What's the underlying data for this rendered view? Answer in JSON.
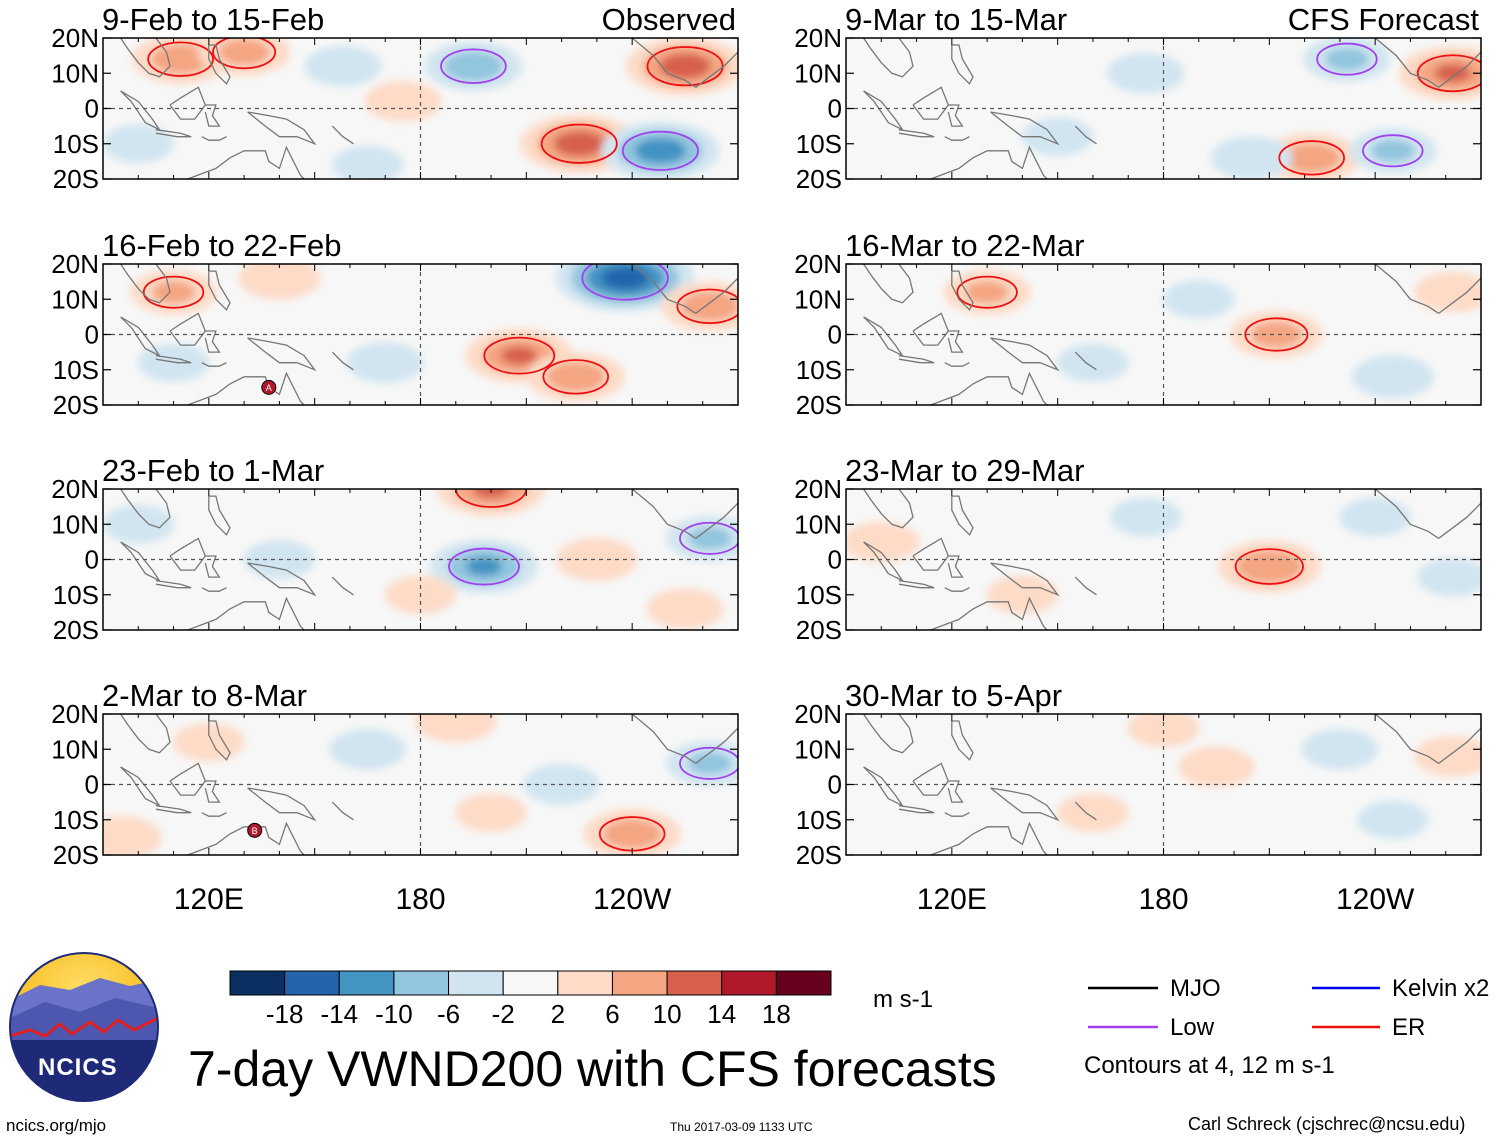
{
  "title": "7-day VWND200 with CFS forecasts",
  "footer": {
    "url": "ncics.org/mjo",
    "timestamp": "Thu 2017-03-09 1133 UTC",
    "author": "Carl Schreck (cjschrec@ncsu.edu)"
  },
  "logo": {
    "text": "NCICS"
  },
  "colorbar": {
    "units": "m s-1",
    "ticks": [
      "-18",
      "-14",
      "-10",
      "-6",
      "-2",
      "2",
      "6",
      "10",
      "14",
      "18"
    ],
    "colors": [
      "#0a3061",
      "#2265ad",
      "#4393c3",
      "#92c5de",
      "#d1e5f0",
      "#f7f7f7",
      "#fddbc7",
      "#f4a582",
      "#d6604d",
      "#b2182b",
      "#67001f"
    ]
  },
  "legend": {
    "items": [
      {
        "label": "MJO",
        "color": "#000000"
      },
      {
        "label": "Kelvin x2",
        "color": "#0000ee"
      },
      {
        "label": "Low",
        "color": "#a040ee"
      },
      {
        "label": "ER",
        "color": "#ee1111"
      }
    ],
    "note": "Contours at 4, 12 m s-1"
  },
  "chart_data": {
    "type": "heatmap",
    "variable": "VWND200",
    "xlabel": "",
    "ylabel": "",
    "x_ticks": [
      "120E",
      "180",
      "120W"
    ],
    "y_ticks": [
      "20N",
      "10N",
      "0",
      "10S",
      "20S"
    ],
    "xlim_degE": [
      90,
      270
    ],
    "ylim_deg": [
      -20,
      20
    ],
    "columns": [
      {
        "heading": "Observed",
        "panels": [
          {
            "title": "9-Feb to 15-Feb",
            "markers": [],
            "features": [
              {
                "lon": 195,
                "lat": 12,
                "v": -8
              },
              {
                "lon": 255,
                "lat": 12,
                "v": 12
              },
              {
                "lon": 225,
                "lat": -10,
                "v": 12
              },
              {
                "lon": 248,
                "lat": -12,
                "v": -12
              },
              {
                "lon": 112,
                "lat": 14,
                "v": 8
              },
              {
                "lon": 130,
                "lat": 16,
                "v": 7
              },
              {
                "lon": 175,
                "lat": 2,
                "v": 4
              },
              {
                "lon": 158,
                "lat": 12,
                "v": -4
              },
              {
                "lon": 100,
                "lat": -10,
                "v": -3
              },
              {
                "lon": 165,
                "lat": -16,
                "v": -3
              }
            ]
          },
          {
            "title": "16-Feb to 22-Feb",
            "markers": [
              {
                "letter": "A",
                "lon": 137,
                "lat": -15
              }
            ],
            "features": [
              {
                "lon": 238,
                "lat": 16,
                "v": -16
              },
              {
                "lon": 208,
                "lat": -6,
                "v": 10
              },
              {
                "lon": 224,
                "lat": -12,
                "v": 8
              },
              {
                "lon": 262,
                "lat": 8,
                "v": 8
              },
              {
                "lon": 110,
                "lat": 12,
                "v": 6
              },
              {
                "lon": 140,
                "lat": 16,
                "v": 5
              },
              {
                "lon": 170,
                "lat": -8,
                "v": -4
              },
              {
                "lon": 110,
                "lat": -8,
                "v": -3
              }
            ]
          },
          {
            "title": "23-Feb to 1-Mar",
            "markers": [],
            "features": [
              {
                "lon": 200,
                "lat": 20,
                "v": 10
              },
              {
                "lon": 198,
                "lat": -2,
                "v": -10
              },
              {
                "lon": 140,
                "lat": 0,
                "v": -3
              },
              {
                "lon": 230,
                "lat": 0,
                "v": 5
              },
              {
                "lon": 262,
                "lat": 6,
                "v": -6
              },
              {
                "lon": 100,
                "lat": 10,
                "v": -3
              },
              {
                "lon": 180,
                "lat": -10,
                "v": 3
              },
              {
                "lon": 255,
                "lat": -14,
                "v": 4
              }
            ]
          },
          {
            "title": "2-Mar to 8-Mar",
            "markers": [
              {
                "letter": "B",
                "lon": 133,
                "lat": -13
              }
            ],
            "features": [
              {
                "lon": 165,
                "lat": 10,
                "v": -4
              },
              {
                "lon": 220,
                "lat": 0,
                "v": -4
              },
              {
                "lon": 95,
                "lat": -15,
                "v": 5
              },
              {
                "lon": 240,
                "lat": -14,
                "v": 8
              },
              {
                "lon": 200,
                "lat": -8,
                "v": 3
              },
              {
                "lon": 120,
                "lat": 12,
                "v": 3
              },
              {
                "lon": 262,
                "lat": 6,
                "v": -6
              },
              {
                "lon": 190,
                "lat": 18,
                "v": 5
              }
            ]
          }
        ]
      },
      {
        "heading": "CFS Forecast",
        "panels": [
          {
            "title": "9-Mar to 15-Mar",
            "markers": [],
            "features": [
              {
                "lon": 232,
                "lat": 14,
                "v": -6
              },
              {
                "lon": 262,
                "lat": 10,
                "v": 10
              },
              {
                "lon": 222,
                "lat": -14,
                "v": 8
              },
              {
                "lon": 175,
                "lat": 10,
                "v": -4
              },
              {
                "lon": 245,
                "lat": -12,
                "v": -6
              },
              {
                "lon": 205,
                "lat": -14,
                "v": -5
              },
              {
                "lon": 150,
                "lat": -8,
                "v": -3
              }
            ]
          },
          {
            "title": "16-Mar to 22-Mar",
            "markers": [],
            "features": [
              {
                "lon": 130,
                "lat": 12,
                "v": 6
              },
              {
                "lon": 212,
                "lat": 0,
                "v": 7
              },
              {
                "lon": 190,
                "lat": 10,
                "v": -3
              },
              {
                "lon": 245,
                "lat": -12,
                "v": -5
              },
              {
                "lon": 160,
                "lat": -8,
                "v": -3
              },
              {
                "lon": 262,
                "lat": 12,
                "v": 4
              }
            ]
          },
          {
            "title": "23-Mar to 29-Mar",
            "markers": [],
            "features": [
              {
                "lon": 210,
                "lat": -2,
                "v": 9
              },
              {
                "lon": 100,
                "lat": 5,
                "v": 4
              },
              {
                "lon": 140,
                "lat": -10,
                "v": 3
              },
              {
                "lon": 175,
                "lat": 12,
                "v": -3
              },
              {
                "lon": 240,
                "lat": 12,
                "v": -3
              },
              {
                "lon": 262,
                "lat": -5,
                "v": -3
              }
            ]
          },
          {
            "title": "30-Mar to 5-Apr",
            "markers": [],
            "features": [
              {
                "lon": 195,
                "lat": 5,
                "v": 4
              },
              {
                "lon": 230,
                "lat": 10,
                "v": -4
              },
              {
                "lon": 262,
                "lat": 8,
                "v": 4
              },
              {
                "lon": 160,
                "lat": -8,
                "v": 3
              },
              {
                "lon": 245,
                "lat": -10,
                "v": -3
              },
              {
                "lon": 180,
                "lat": 16,
                "v": 3
              }
            ]
          }
        ]
      }
    ]
  }
}
